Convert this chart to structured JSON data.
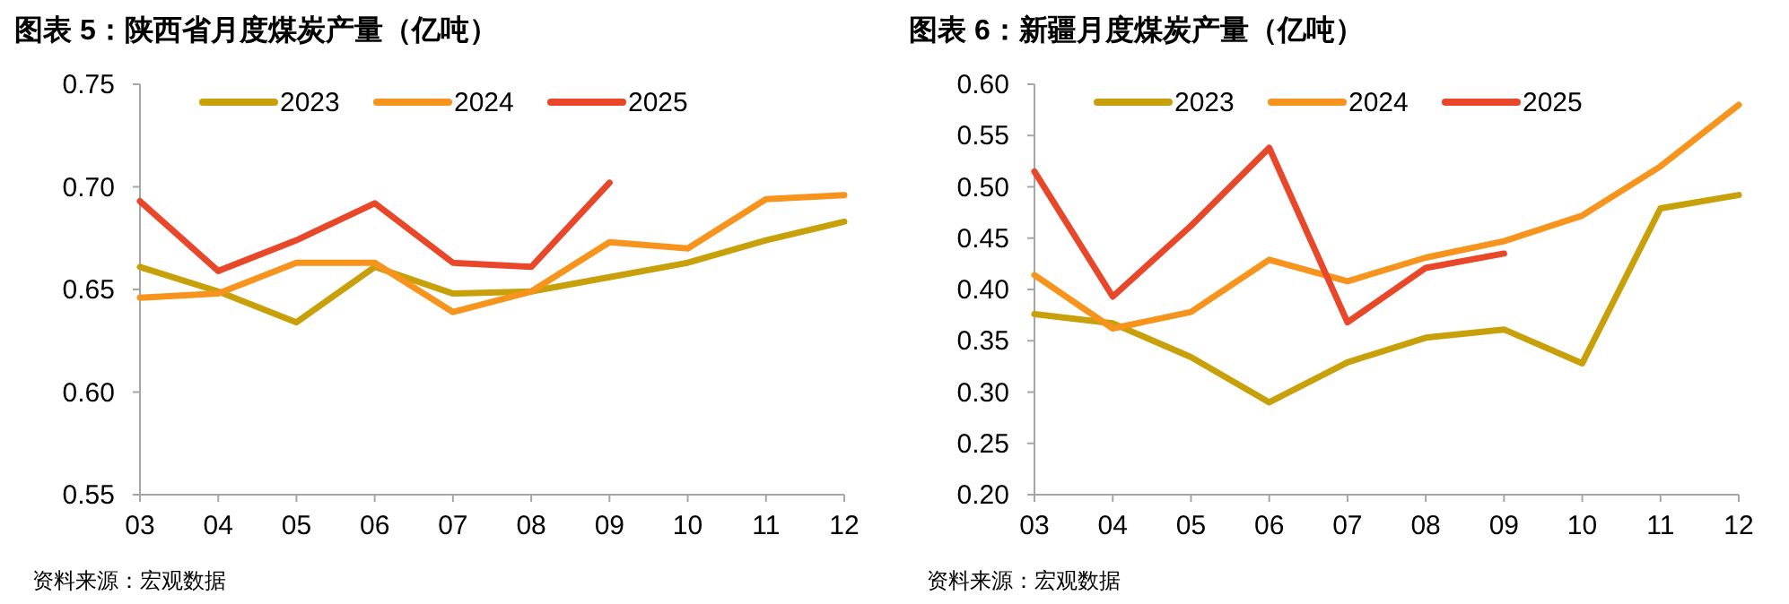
{
  "chart_data": [
    {
      "type": "line",
      "title": "图表 5：陕西省月度煤炭产量（亿吨）",
      "categories": [
        "03",
        "04",
        "05",
        "06",
        "07",
        "08",
        "09",
        "10",
        "11",
        "12"
      ],
      "series": [
        {
          "name": "2023",
          "color": "#c8a00a",
          "values": [
            0.661,
            0.649,
            0.634,
            0.661,
            0.648,
            0.649,
            0.656,
            0.663,
            0.674,
            0.683
          ]
        },
        {
          "name": "2024",
          "color": "#f7941d",
          "values": [
            0.646,
            0.648,
            0.663,
            0.663,
            0.639,
            0.649,
            0.673,
            0.67,
            0.694,
            0.696
          ]
        },
        {
          "name": "2025",
          "color": "#e8472a",
          "values": [
            0.693,
            0.659,
            0.674,
            0.692,
            0.663,
            0.661,
            0.702,
            null,
            null,
            null
          ]
        }
      ],
      "ylim": [
        0.55,
        0.75
      ],
      "yticks": [
        {
          "value": 0.55,
          "label": "0.55"
        },
        {
          "value": 0.6,
          "label": "0.60"
        },
        {
          "value": 0.65,
          "label": "0.65"
        },
        {
          "value": 0.7,
          "label": "0.70"
        },
        {
          "value": 0.75,
          "label": "0.75"
        }
      ],
      "legend": "top",
      "marker": "none",
      "line_style": "solid",
      "annotations": [
        "资料来源：宏观数据"
      ]
    },
    {
      "type": "line",
      "title": "图表 6：新疆月度煤炭产量（亿吨）",
      "categories": [
        "03",
        "04",
        "05",
        "06",
        "07",
        "08",
        "09",
        "10",
        "11",
        "12"
      ],
      "series": [
        {
          "name": "2023",
          "color": "#c8a00a",
          "values": [
            0.376,
            0.367,
            0.334,
            0.29,
            0.329,
            0.353,
            0.361,
            0.328,
            0.479,
            0.492
          ]
        },
        {
          "name": "2024",
          "color": "#f7941d",
          "values": [
            0.414,
            0.362,
            0.378,
            0.429,
            0.408,
            0.431,
            0.447,
            0.472,
            0.52,
            0.58
          ]
        },
        {
          "name": "2025",
          "color": "#e8472a",
          "values": [
            0.515,
            0.393,
            0.462,
            0.538,
            0.368,
            0.421,
            0.435,
            null,
            null,
            null
          ]
        }
      ],
      "ylim": [
        0.2,
        0.6
      ],
      "yticks": [
        {
          "value": 0.2,
          "label": "0.20"
        },
        {
          "value": 0.25,
          "label": "0.25"
        },
        {
          "value": 0.3,
          "label": "0.30"
        },
        {
          "value": 0.35,
          "label": "0.35"
        },
        {
          "value": 0.4,
          "label": "0.40"
        },
        {
          "value": 0.45,
          "label": "0.45"
        },
        {
          "value": 0.5,
          "label": "0.50"
        },
        {
          "value": 0.55,
          "label": "0.55"
        },
        {
          "value": 0.6,
          "label": "0.60"
        }
      ],
      "legend": "top",
      "marker": "none",
      "line_style": "solid",
      "annotations": [
        "资料来源：宏观数据"
      ]
    }
  ]
}
